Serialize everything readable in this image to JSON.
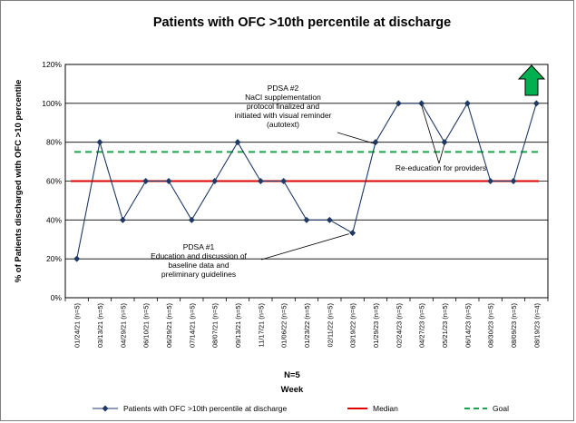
{
  "chart_data": {
    "type": "line",
    "title": "Patients with OFC >10th percentile at discharge",
    "xlabel": "Week",
    "xlabel_note": "N=5",
    "ylabel": "% of Patients discharged with OFC >10 percentile",
    "ylim": [
      0,
      120
    ],
    "yticks": [
      "0%",
      "20%",
      "40%",
      "60%",
      "80%",
      "100%",
      "120%"
    ],
    "ytick_values": [
      0,
      20,
      40,
      60,
      80,
      100,
      120
    ],
    "grid": "horizontal",
    "categories": [
      "01/24/21 (n=5)",
      "03/13/21 (n=5)",
      "04/29/21 (n=5)",
      "06/10/21 (n=5)",
      "06/29/21 (n=5)",
      "07/14/21 (n=5)",
      "08/07/21 (n=5)",
      "09/13/21 (n=5)",
      "11/17/21 (n=5)",
      "01/06/22 (n=5)",
      "01/23/22 (n=5)",
      "02/11/22 (n=5)",
      "03/19/22 (n=6)",
      "01/29/23 (n=5)",
      "02/24/23 (n=5)",
      "04/27/23 (n=5)",
      "05/21/23 (n=5)",
      "06/14/23 (n=5)",
      "08/30/23 (n=5)",
      "08/09/23 (n=5)",
      "08/19/23 (n=4)"
    ],
    "series": [
      {
        "name": "Patients with OFC >10th percentile at discharge",
        "color": "#1f3864",
        "values": [
          20,
          80,
          40,
          60,
          60,
          40,
          60,
          80,
          60,
          60,
          40,
          40,
          33.3,
          80,
          100,
          100,
          80,
          100,
          60,
          60,
          100
        ]
      }
    ],
    "median": {
      "name": "Median",
      "value": 60,
      "color": "#e00000"
    },
    "goal": {
      "name": "Goal",
      "value": 75,
      "color": "#1aa34a"
    },
    "annotations": [
      {
        "lines": [
          "PDSA #2",
          "NaCl supplementation",
          "protocol finalized and",
          "initiated with visual reminder",
          "(autotext)"
        ],
        "points_to": 13
      },
      {
        "lines": [
          "Re-education for providers"
        ],
        "points_to": [
          15,
          16
        ]
      },
      {
        "lines": [
          "PDSA #1",
          "Education and discussion of",
          "baseline data and",
          "preliminary guidelines"
        ],
        "points_to": 12
      }
    ],
    "trend_indicator": {
      "icon": "up-arrow-icon",
      "color": "#00b050"
    }
  }
}
